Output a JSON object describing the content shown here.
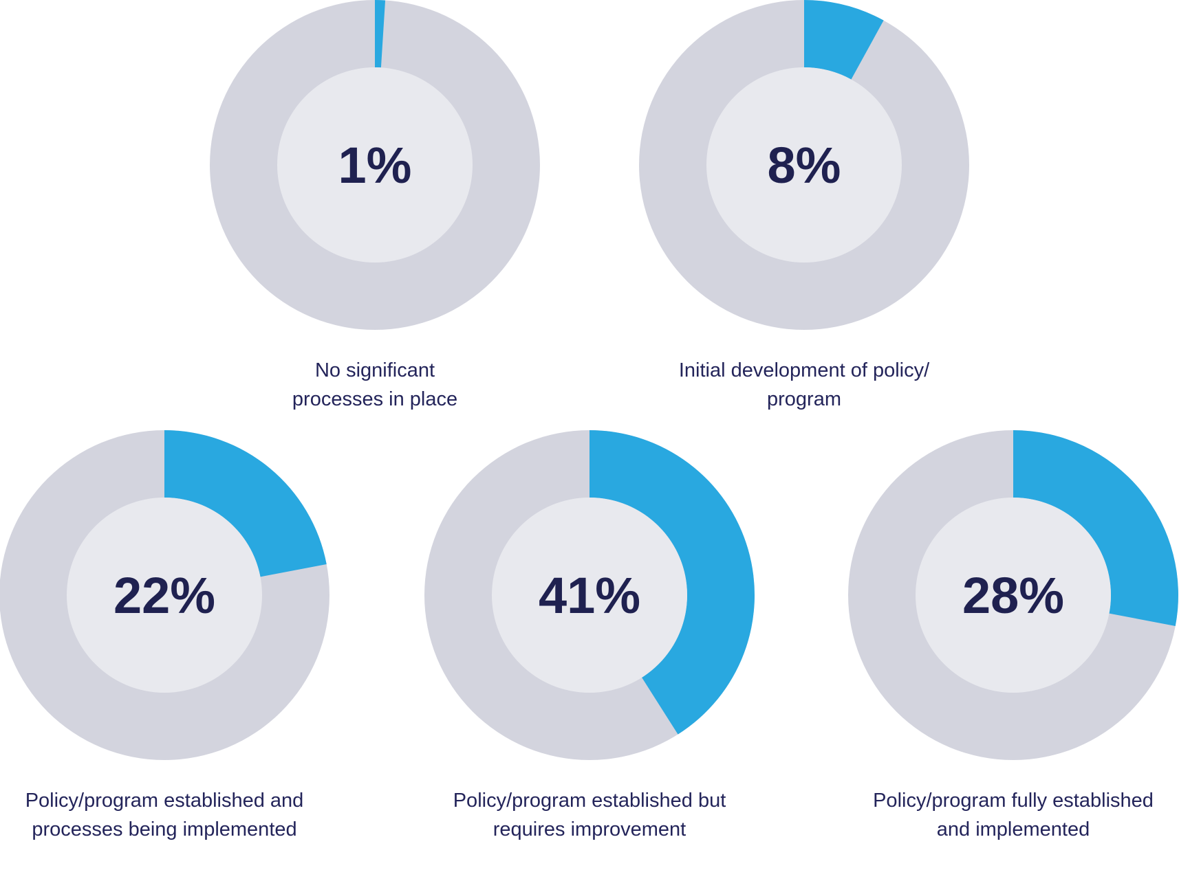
{
  "chart_data": [
    {
      "type": "donut",
      "values": [
        1
      ],
      "value_labels": [
        "1%"
      ],
      "color": "#29a8e0",
      "label": [
        "No significant",
        "processes in place"
      ]
    },
    {
      "type": "donut",
      "values": [
        8
      ],
      "value_labels": [
        "8%"
      ],
      "color": "#29a8e0",
      "label": [
        "Initial development of policy/",
        "program"
      ]
    },
    {
      "type": "donut",
      "values": [
        22
      ],
      "value_labels": [
        "22%"
      ],
      "color": "#29a8e0",
      "label": [
        "Policy/program established and",
        "processes being implemented"
      ]
    },
    {
      "type": "donut",
      "values": [
        41
      ],
      "value_labels": [
        "41%"
      ],
      "color": "#29a8e0",
      "label": [
        "Policy/program established but",
        "requires improvement"
      ]
    },
    {
      "type": "donut",
      "values": [
        28
      ],
      "value_labels": [
        "28%"
      ],
      "color": "#29a8e0",
      "label": [
        "Policy/program fully established",
        "and implemented"
      ]
    }
  ]
}
